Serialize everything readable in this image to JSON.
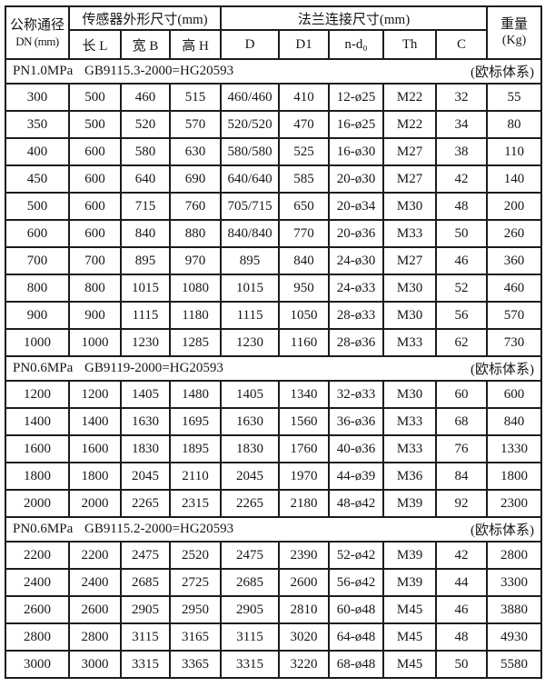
{
  "table": {
    "header": {
      "dn_line1": "公称通径",
      "dn_line2": "DN (mm)",
      "sensor_group": "传感器外形尺寸(mm)",
      "sensor_cols": [
        "长 L",
        "宽 B",
        "高 H"
      ],
      "flange_group": "法兰连接尺寸(mm)",
      "flange_cols": [
        "D",
        "D1",
        "n-d₀",
        "Th",
        "C"
      ],
      "weight_line1": "重量",
      "weight_line2": "(Kg)"
    },
    "sections": [
      {
        "pn": "PN1.0MPa",
        "standard": "GB9115.3-2000=HG20593",
        "note": "(欧标体系)",
        "rows": [
          [
            "300",
            "500",
            "460",
            "515",
            "460/460",
            "410",
            "12-ø25",
            "M22",
            "32",
            "55"
          ],
          [
            "350",
            "500",
            "520",
            "570",
            "520/520",
            "470",
            "16-ø25",
            "M22",
            "34",
            "80"
          ],
          [
            "400",
            "600",
            "580",
            "630",
            "580/580",
            "525",
            "16-ø30",
            "M27",
            "38",
            "110"
          ],
          [
            "450",
            "600",
            "640",
            "690",
            "640/640",
            "585",
            "20-ø30",
            "M27",
            "42",
            "140"
          ],
          [
            "500",
            "600",
            "715",
            "760",
            "705/715",
            "650",
            "20-ø34",
            "M30",
            "48",
            "200"
          ],
          [
            "600",
            "600",
            "840",
            "880",
            "840/840",
            "770",
            "20-ø36",
            "M33",
            "50",
            "260"
          ],
          [
            "700",
            "700",
            "895",
            "970",
            "895",
            "840",
            "24-ø30",
            "M27",
            "46",
            "360"
          ],
          [
            "800",
            "800",
            "1015",
            "1080",
            "1015",
            "950",
            "24-ø33",
            "M30",
            "52",
            "460"
          ],
          [
            "900",
            "900",
            "1115",
            "1180",
            "1115",
            "1050",
            "28-ø33",
            "M30",
            "56",
            "570"
          ],
          [
            "1000",
            "1000",
            "1230",
            "1285",
            "1230",
            "1160",
            "28-ø36",
            "M33",
            "62",
            "730"
          ]
        ]
      },
      {
        "pn": "PN0.6MPa",
        "standard": "GB9119-2000=HG20593",
        "note": "(欧标体系)",
        "rows": [
          [
            "1200",
            "1200",
            "1405",
            "1480",
            "1405",
            "1340",
            "32-ø33",
            "M30",
            "60",
            "600"
          ],
          [
            "1400",
            "1400",
            "1630",
            "1695",
            "1630",
            "1560",
            "36-ø36",
            "M33",
            "68",
            "840"
          ],
          [
            "1600",
            "1600",
            "1830",
            "1895",
            "1830",
            "1760",
            "40-ø36",
            "M33",
            "76",
            "1330"
          ],
          [
            "1800",
            "1800",
            "2045",
            "2110",
            "2045",
            "1970",
            "44-ø39",
            "M36",
            "84",
            "1800"
          ],
          [
            "2000",
            "2000",
            "2265",
            "2315",
            "2265",
            "2180",
            "48-ø42",
            "M39",
            "92",
            "2300"
          ]
        ]
      },
      {
        "pn": "PN0.6MPa",
        "standard": "GB9115.2-2000=HG20593",
        "note": "(欧标体系)",
        "rows": [
          [
            "2200",
            "2200",
            "2475",
            "2520",
            "2475",
            "2390",
            "52-ø42",
            "M39",
            "42",
            "2800"
          ],
          [
            "2400",
            "2400",
            "2685",
            "2725",
            "2685",
            "2600",
            "56-ø42",
            "M39",
            "44",
            "3300"
          ],
          [
            "2600",
            "2600",
            "2905",
            "2950",
            "2905",
            "2810",
            "60-ø48",
            "M45",
            "46",
            "3880"
          ],
          [
            "2800",
            "2800",
            "3115",
            "3165",
            "3115",
            "3020",
            "64-ø48",
            "M45",
            "48",
            "4930"
          ],
          [
            "3000",
            "3000",
            "3315",
            "3365",
            "3315",
            "3220",
            "68-ø48",
            "M45",
            "50",
            "5580"
          ]
        ]
      }
    ]
  }
}
